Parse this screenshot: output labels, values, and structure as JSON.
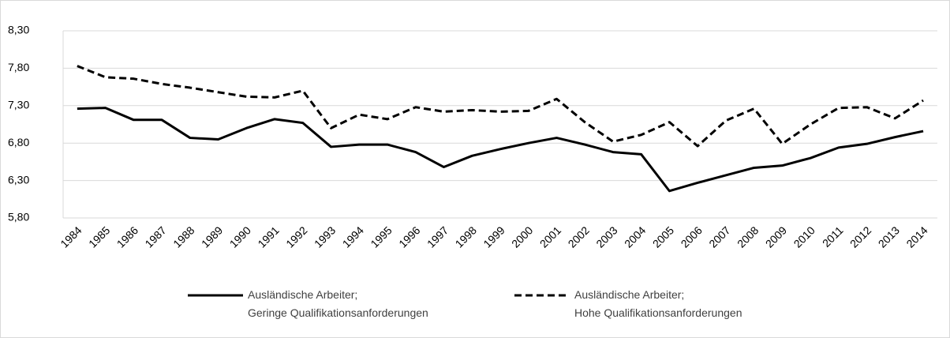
{
  "chart_data": {
    "type": "line",
    "categories": [
      "1984",
      "1985",
      "1986",
      "1987",
      "1988",
      "1989",
      "1990",
      "1991",
      "1992",
      "1993",
      "1994",
      "1995",
      "1996",
      "1997",
      "1998",
      "1999",
      "2000",
      "2001",
      "2002",
      "2003",
      "2004",
      "2005",
      "2006",
      "2007",
      "2008",
      "2009",
      "2010",
      "2011",
      "2012",
      "2013",
      "2014"
    ],
    "series": [
      {
        "name": "Ausländische Arbeiter;\nGeringe Qualifikationsanforderungen",
        "color": "#000000",
        "dash": "solid",
        "values": [
          7.26,
          7.27,
          7.11,
          7.11,
          6.87,
          6.85,
          7.0,
          7.12,
          7.07,
          6.75,
          6.78,
          6.78,
          6.68,
          6.48,
          6.63,
          6.72,
          6.8,
          6.87,
          6.78,
          6.68,
          6.65,
          6.16,
          6.27,
          6.37,
          6.47,
          6.5,
          6.6,
          6.74,
          6.79,
          6.88,
          6.96
        ]
      },
      {
        "name": "Ausländische Arbeiter;\nHohe Qualifikationsanforderungen",
        "color": "#000000",
        "dash": "dashed",
        "values": [
          7.83,
          7.68,
          7.66,
          7.59,
          7.54,
          7.48,
          7.42,
          7.41,
          7.5,
          7.0,
          7.18,
          7.12,
          7.28,
          7.22,
          7.24,
          7.22,
          7.23,
          7.39,
          7.08,
          6.82,
          6.91,
          7.08,
          6.76,
          7.1,
          7.26,
          6.79,
          7.05,
          7.27,
          7.28,
          7.13,
          7.37
        ]
      }
    ],
    "ylim": [
      5.8,
      8.3
    ],
    "yticks": [
      {
        "value": 5.8,
        "label": "5,80"
      },
      {
        "value": 6.3,
        "label": "6,30"
      },
      {
        "value": 6.8,
        "label": "6,80"
      },
      {
        "value": 7.3,
        "label": "7,30"
      },
      {
        "value": 7.8,
        "label": "7,80"
      },
      {
        "value": 8.3,
        "label": "8,30"
      }
    ],
    "grid": true,
    "legend": "bottom"
  }
}
